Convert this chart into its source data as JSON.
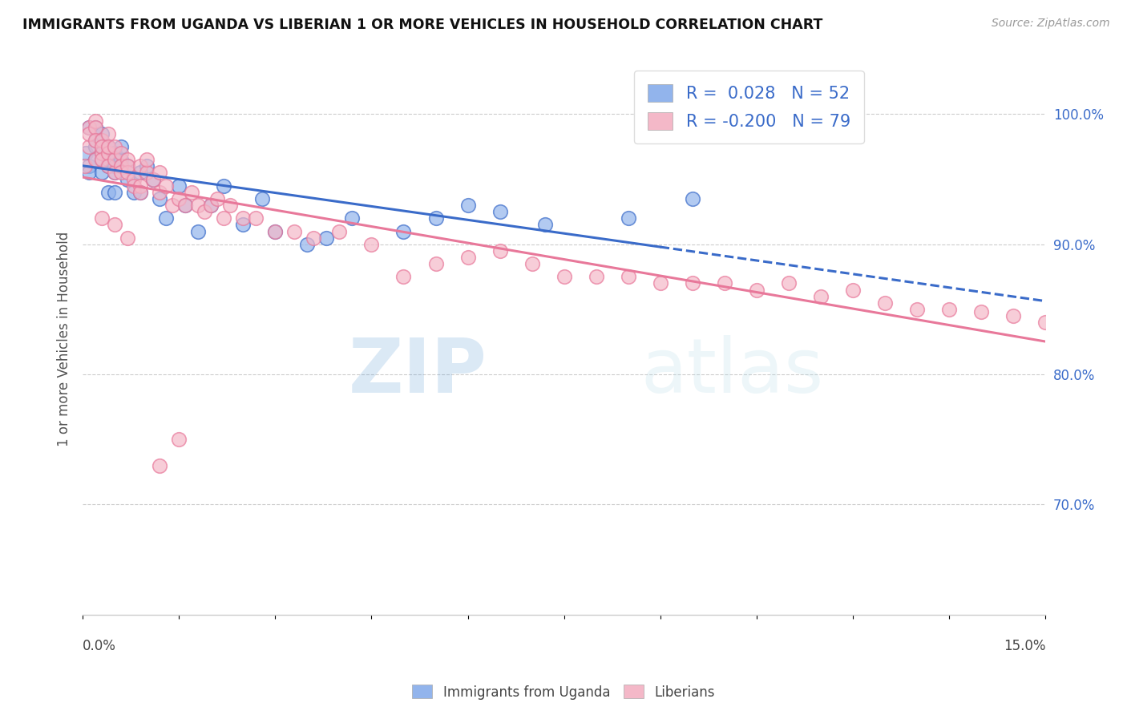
{
  "title": "IMMIGRANTS FROM UGANDA VS LIBERIAN 1 OR MORE VEHICLES IN HOUSEHOLD CORRELATION CHART",
  "source": "Source: ZipAtlas.com",
  "ylabel": "1 or more Vehicles in Household",
  "yticks": [
    0.7,
    0.8,
    0.9,
    1.0
  ],
  "ytick_labels": [
    "70.0%",
    "80.0%",
    "90.0%",
    "100.0%"
  ],
  "xmin": 0.0,
  "xmax": 0.15,
  "ymin": 0.615,
  "ymax": 1.04,
  "legend_R_uganda": " 0.028",
  "legend_N_uganda": "52",
  "legend_R_liberian": "-0.200",
  "legend_N_liberian": "79",
  "uganda_color": "#92B4EC",
  "liberian_color": "#F4B8C8",
  "uganda_line_color": "#3A6BC9",
  "liberian_line_color": "#E8789A",
  "watermark_zip": "ZIP",
  "watermark_atlas": "atlas",
  "uganda_x": [
    0.0005,
    0.001,
    0.001,
    0.001,
    0.002,
    0.002,
    0.002,
    0.002,
    0.003,
    0.003,
    0.003,
    0.003,
    0.003,
    0.004,
    0.004,
    0.004,
    0.004,
    0.004,
    0.005,
    0.005,
    0.005,
    0.005,
    0.006,
    0.006,
    0.006,
    0.007,
    0.007,
    0.008,
    0.009,
    0.009,
    0.01,
    0.011,
    0.012,
    0.013,
    0.015,
    0.016,
    0.018,
    0.02,
    0.022,
    0.025,
    0.028,
    0.03,
    0.035,
    0.038,
    0.042,
    0.05,
    0.055,
    0.06,
    0.065,
    0.072,
    0.085,
    0.095
  ],
  "uganda_y": [
    0.97,
    0.96,
    0.99,
    0.955,
    0.975,
    0.965,
    0.99,
    0.98,
    0.965,
    0.975,
    0.985,
    0.97,
    0.955,
    0.975,
    0.96,
    0.965,
    0.975,
    0.94,
    0.97,
    0.96,
    0.955,
    0.94,
    0.965,
    0.96,
    0.975,
    0.95,
    0.96,
    0.94,
    0.955,
    0.94,
    0.96,
    0.95,
    0.935,
    0.92,
    0.945,
    0.93,
    0.91,
    0.93,
    0.945,
    0.915,
    0.935,
    0.91,
    0.9,
    0.905,
    0.92,
    0.91,
    0.92,
    0.93,
    0.925,
    0.915,
    0.92,
    0.935
  ],
  "liberian_x": [
    0.0003,
    0.001,
    0.001,
    0.001,
    0.002,
    0.002,
    0.002,
    0.002,
    0.003,
    0.003,
    0.003,
    0.003,
    0.004,
    0.004,
    0.004,
    0.004,
    0.005,
    0.005,
    0.005,
    0.006,
    0.006,
    0.006,
    0.007,
    0.007,
    0.007,
    0.008,
    0.008,
    0.009,
    0.009,
    0.01,
    0.01,
    0.011,
    0.012,
    0.012,
    0.013,
    0.014,
    0.015,
    0.016,
    0.017,
    0.018,
    0.019,
    0.02,
    0.021,
    0.022,
    0.023,
    0.025,
    0.027,
    0.03,
    0.033,
    0.036,
    0.04,
    0.045,
    0.05,
    0.055,
    0.06,
    0.065,
    0.07,
    0.075,
    0.08,
    0.085,
    0.09,
    0.095,
    0.1,
    0.105,
    0.11,
    0.115,
    0.12,
    0.125,
    0.13,
    0.135,
    0.14,
    0.145,
    0.15,
    0.003,
    0.005,
    0.007,
    0.009,
    0.012,
    0.015
  ],
  "liberian_y": [
    0.96,
    0.99,
    0.975,
    0.985,
    0.965,
    0.995,
    0.99,
    0.98,
    0.97,
    0.98,
    0.975,
    0.965,
    0.97,
    0.96,
    0.985,
    0.975,
    0.955,
    0.965,
    0.975,
    0.97,
    0.96,
    0.955,
    0.965,
    0.955,
    0.96,
    0.95,
    0.945,
    0.96,
    0.945,
    0.955,
    0.965,
    0.95,
    0.955,
    0.94,
    0.945,
    0.93,
    0.935,
    0.93,
    0.94,
    0.93,
    0.925,
    0.93,
    0.935,
    0.92,
    0.93,
    0.92,
    0.92,
    0.91,
    0.91,
    0.905,
    0.91,
    0.9,
    0.875,
    0.885,
    0.89,
    0.895,
    0.885,
    0.875,
    0.875,
    0.875,
    0.87,
    0.87,
    0.87,
    0.865,
    0.87,
    0.86,
    0.865,
    0.855,
    0.85,
    0.85,
    0.848,
    0.845,
    0.84,
    0.92,
    0.915,
    0.905,
    0.94,
    0.73,
    0.75
  ]
}
